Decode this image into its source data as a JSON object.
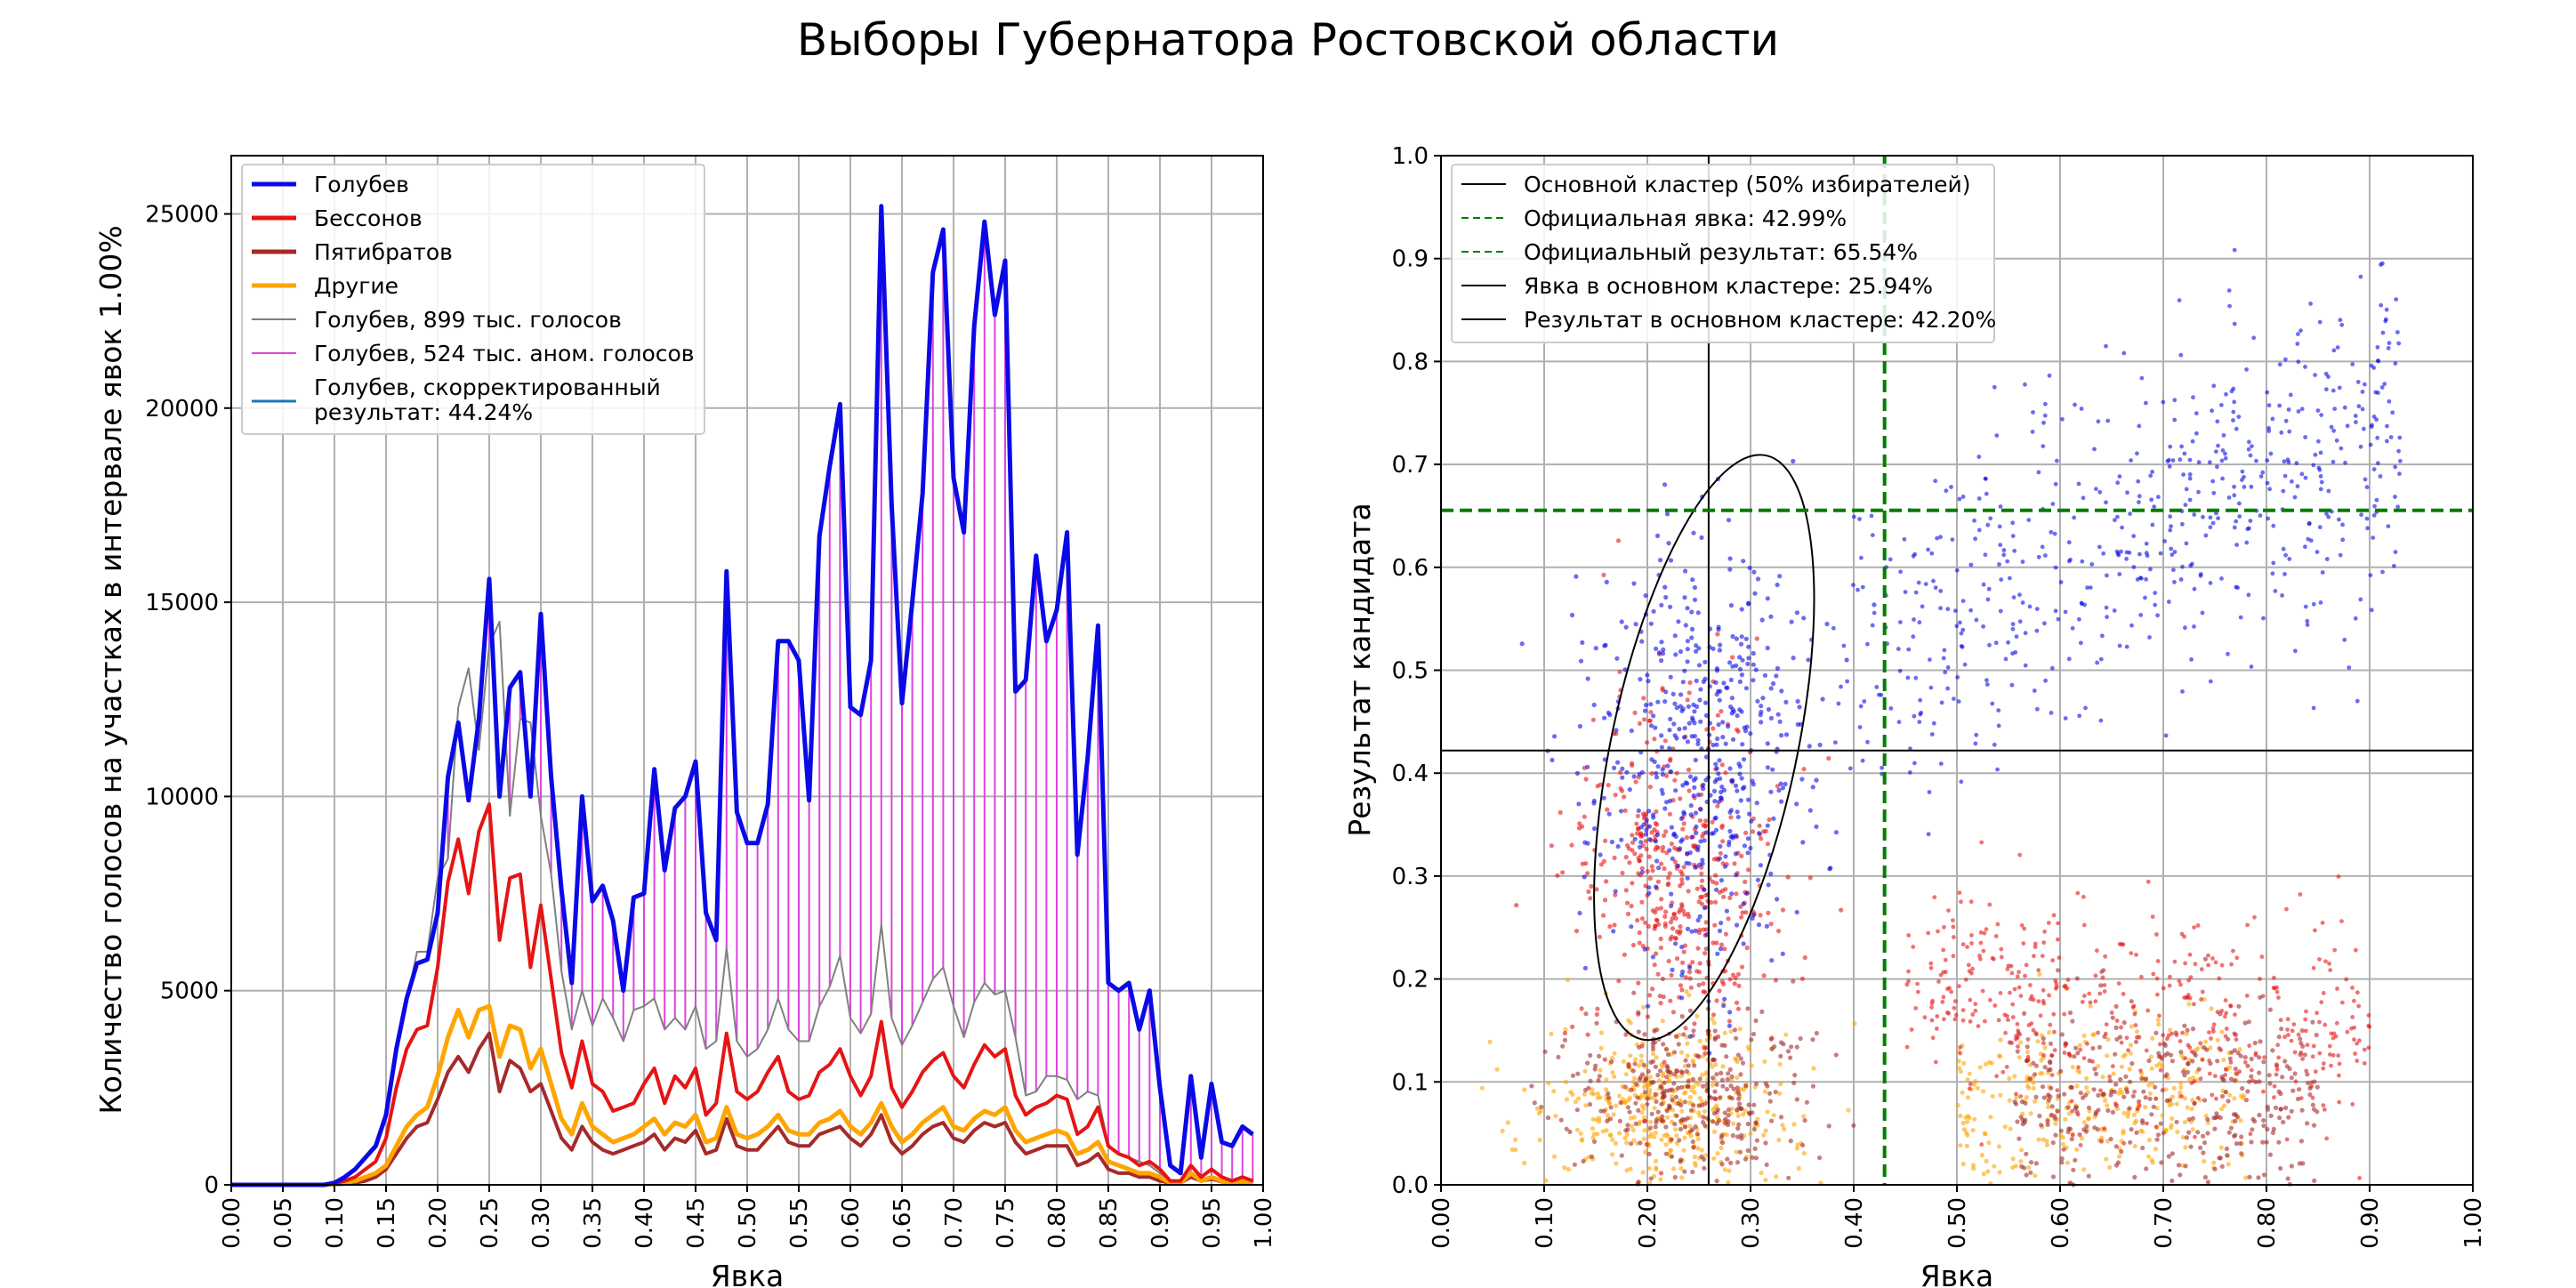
{
  "title": "Выборы Губернатора Ростовской области",
  "colors": {
    "golubev": "#0a0ae6",
    "bessonov": "#e61414",
    "pyatibratov": "#a52a2a",
    "other": "#ffa500",
    "golubev_total": "#808080",
    "anomaly": "#dd44dd",
    "corrected": "#1f77b4",
    "green": "#007f00",
    "black": "#000000"
  },
  "chart_data": [
    {
      "type": "line",
      "xlabel": "Явка",
      "ylabel": "Количество голосов на участках в интервале явок 1.00%",
      "xlim": [
        0,
        1
      ],
      "ylim": [
        0,
        26500
      ],
      "xticks": [
        "0.00",
        "0.05",
        "0.10",
        "0.15",
        "0.20",
        "0.25",
        "0.30",
        "0.35",
        "0.40",
        "0.45",
        "0.50",
        "0.55",
        "0.60",
        "0.65",
        "0.70",
        "0.75",
        "0.80",
        "0.85",
        "0.90",
        "0.95",
        "1.00"
      ],
      "yticks": [
        "0",
        "5000",
        "10000",
        "15000",
        "20000",
        "25000"
      ],
      "grid": true,
      "legend": "top-left",
      "x_start": 0.0,
      "x_step": 0.01,
      "series": [
        {
          "name": "Голубев",
          "color": "#0a0ae6",
          "width": 5,
          "values": [
            0,
            0,
            0,
            0,
            0,
            0,
            0,
            0,
            0,
            0,
            50,
            200,
            400,
            700,
            1000,
            1800,
            3500,
            4800,
            5700,
            5800,
            7000,
            10500,
            11900,
            9900,
            12000,
            15600,
            10000,
            12800,
            13200,
            10000,
            14700,
            10500,
            7600,
            5200,
            10000,
            7300,
            7700,
            6800,
            5000,
            7400,
            7500,
            10700,
            8100,
            9700,
            10000,
            10900,
            7000,
            6300,
            15800,
            9600,
            8800,
            8800,
            9800,
            14000,
            14000,
            13500,
            9900,
            16700,
            18500,
            20100,
            12300,
            12100,
            13500,
            25200,
            17500,
            12400,
            15000,
            17800,
            23500,
            24600,
            18200,
            16800,
            22100,
            24800,
            22400,
            23800,
            12700,
            13000,
            16200,
            14000,
            14800,
            16800,
            8500,
            11000,
            14400,
            5200,
            5000,
            5200,
            4000,
            5000,
            2500,
            500,
            300,
            2800,
            700,
            2600,
            1100,
            1000,
            1500,
            1300
          ]
        },
        {
          "name": "Бессонов",
          "color": "#e61414",
          "width": 4,
          "values": [
            0,
            0,
            0,
            0,
            0,
            0,
            0,
            0,
            0,
            0,
            40,
            100,
            200,
            400,
            600,
            1200,
            2500,
            3500,
            4000,
            4100,
            5600,
            7800,
            8900,
            7500,
            9100,
            9800,
            6300,
            7900,
            8000,
            5600,
            7200,
            5300,
            3400,
            2500,
            3700,
            2600,
            2400,
            1900,
            2000,
            2100,
            2600,
            3000,
            2100,
            2800,
            2500,
            3000,
            1800,
            2100,
            3900,
            2400,
            2200,
            2400,
            2900,
            3300,
            2400,
            2200,
            2300,
            2900,
            3100,
            3500,
            2800,
            2300,
            2800,
            4200,
            2500,
            2000,
            2400,
            2900,
            3200,
            3400,
            2800,
            2500,
            3100,
            3600,
            3300,
            3500,
            2300,
            1800,
            2000,
            2100,
            2300,
            2200,
            1300,
            1500,
            2000,
            1000,
            800,
            700,
            500,
            600,
            400,
            100,
            100,
            500,
            200,
            400,
            200,
            100,
            200,
            100
          ]
        },
        {
          "name": "Пятибратов",
          "color": "#a52a2a",
          "width": 4,
          "values": [
            0,
            0,
            0,
            0,
            0,
            0,
            0,
            0,
            0,
            0,
            10,
            20,
            50,
            100,
            200,
            400,
            800,
            1200,
            1500,
            1600,
            2200,
            2900,
            3300,
            2900,
            3500,
            3900,
            2400,
            3200,
            3000,
            2400,
            2600,
            1900,
            1200,
            900,
            1500,
            1100,
            900,
            800,
            900,
            1000,
            1100,
            1300,
            900,
            1200,
            1100,
            1400,
            800,
            900,
            1700,
            1000,
            900,
            900,
            1200,
            1500,
            1100,
            1000,
            1000,
            1300,
            1400,
            1500,
            1200,
            1000,
            1300,
            1800,
            1100,
            800,
            1000,
            1300,
            1500,
            1600,
            1200,
            1100,
            1400,
            1600,
            1500,
            1600,
            1100,
            800,
            900,
            1000,
            1000,
            1000,
            500,
            600,
            800,
            400,
            300,
            300,
            200,
            200,
            100,
            50,
            50,
            200,
            100,
            150,
            80,
            50,
            80,
            50
          ]
        },
        {
          "name": "Другие",
          "color": "#ffa500",
          "width": 5,
          "values": [
            0,
            0,
            0,
            0,
            0,
            0,
            0,
            0,
            0,
            0,
            20,
            50,
            100,
            200,
            300,
            500,
            1000,
            1500,
            1800,
            2000,
            2800,
            3800,
            4500,
            3800,
            4500,
            4600,
            3300,
            4100,
            4000,
            3000,
            3500,
            2600,
            1700,
            1300,
            2100,
            1500,
            1300,
            1100,
            1200,
            1300,
            1500,
            1700,
            1300,
            1600,
            1500,
            1800,
            1100,
            1200,
            2000,
            1300,
            1200,
            1300,
            1500,
            1800,
            1400,
            1300,
            1300,
            1600,
            1700,
            1900,
            1500,
            1300,
            1600,
            2100,
            1500,
            1100,
            1300,
            1600,
            1800,
            2000,
            1500,
            1400,
            1700,
            1900,
            1800,
            2000,
            1400,
            1100,
            1200,
            1300,
            1400,
            1300,
            800,
            900,
            1100,
            600,
            500,
            400,
            300,
            300,
            200,
            50,
            50,
            300,
            100,
            200,
            100,
            50,
            100,
            50
          ]
        },
        {
          "name": "Голубев, 899 тыс. голосов",
          "color": "#808080",
          "width": 2,
          "values": [
            0,
            0,
            0,
            0,
            0,
            0,
            0,
            0,
            0,
            0,
            50,
            200,
            400,
            700,
            1000,
            1800,
            3500,
            4700,
            6000,
            6000,
            7900,
            8400,
            12300,
            13300,
            11200,
            13900,
            14500,
            9500,
            12000,
            11900,
            9500,
            8000,
            5500,
            4000,
            5000,
            4100,
            4800,
            4300,
            3700,
            4500,
            4600,
            4800,
            4000,
            4300,
            4000,
            4600,
            3500,
            3700,
            6100,
            3700,
            3300,
            3500,
            4000,
            4800,
            4000,
            3700,
            3700,
            4600,
            5100,
            5900,
            4300,
            3900,
            4400,
            6700,
            4300,
            3600,
            4100,
            4700,
            5300,
            5600,
            4600,
            3800,
            4700,
            5200,
            4900,
            5000,
            3800,
            2300,
            2400,
            2800,
            2800,
            2700,
            2200,
            2400,
            2300,
            1000,
            800,
            700,
            600,
            500,
            300,
            100,
            100,
            300,
            100,
            200,
            100,
            50,
            100,
            50
          ]
        },
        {
          "name": "Голубев, 524 тыс. аном. голосов",
          "color": "#dd44dd",
          "width": 2,
          "style": "vertical-bars"
        },
        {
          "name": "Голубев, скорректированный результат: 44.24%",
          "color": "#1f77b4",
          "width": 3
        }
      ]
    },
    {
      "type": "scatter",
      "xlabel": "Явка",
      "ylabel": "Результат кандидата",
      "xlim": [
        0,
        1
      ],
      "ylim": [
        0,
        1
      ],
      "xticks": [
        "0.00",
        "0.10",
        "0.20",
        "0.30",
        "0.40",
        "0.50",
        "0.60",
        "0.70",
        "0.80",
        "0.90",
        "1.00"
      ],
      "yticks": [
        "0.0",
        "0.1",
        "0.2",
        "0.3",
        "0.4",
        "0.5",
        "0.6",
        "0.7",
        "0.8",
        "0.9",
        "1.0"
      ],
      "grid": true,
      "legend": "top-left",
      "official_turnout": 0.4299,
      "official_result": 0.6554,
      "cluster_turnout": 0.2594,
      "cluster_result": 0.422,
      "cluster_ellipse": {
        "center_x": 0.255,
        "center_y": 0.425,
        "rx": 0.09,
        "ry": 0.29,
        "tilt_deg": 12
      },
      "series": [
        {
          "name": "Голубев",
          "color": "#0a0ae6"
        },
        {
          "name": "Бессонов",
          "color": "#e61414"
        },
        {
          "name": "Пятибратов",
          "color": "#a52a2a"
        },
        {
          "name": "Другие",
          "color": "#ffa500"
        }
      ],
      "legend_entries": [
        {
          "label": "Основной кластер (50% избирателей)",
          "color": "#000000",
          "dash": "solid"
        },
        {
          "label": "Официальная явка: 42.99%",
          "color": "#007f00",
          "dash": "dashed"
        },
        {
          "label": "Официальный результат: 65.54%",
          "color": "#007f00",
          "dash": "dashed"
        },
        {
          "label": "Явка в основном кластере: 25.94%",
          "color": "#000000",
          "dash": "solid"
        },
        {
          "label": "Результат в основном кластере: 42.20%",
          "color": "#000000",
          "dash": "solid"
        }
      ]
    }
  ]
}
